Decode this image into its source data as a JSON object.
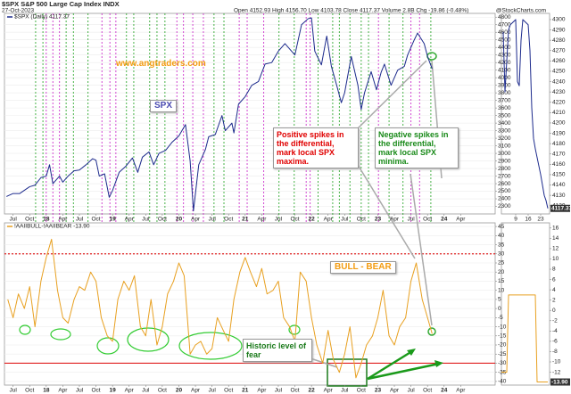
{
  "header": {
    "symbol": "$SPX S&P 500 Large Cap Index INDX",
    "date": "27-Oct-2023",
    "quote": "Open 4152.93 High 4156.70 Low 4103.78 Close 4117.37 Volume 2.8B Chg -19.86 (-0.48%)",
    "credit": "@StockCharts.com"
  },
  "annotations": {
    "site": "www.angtraders.com",
    "spx": "SPX",
    "positive": "Positive spikes in the differential, mark local SPX maxima.",
    "negative": "Negative spikes in the differential, mark local SPX minima.",
    "bull_bear": "BULL - BEAR",
    "fear": "Historic level of fear"
  },
  "chart_data": [
    {
      "type": "line",
      "legend": "$SPX (Daily) 4117.37",
      "color": "#1c2a8c",
      "grid": true,
      "xlim": [
        2017.37,
        2024.77
      ],
      "ylim": [
        2200,
        4850
      ],
      "yticks": [
        2300,
        2400,
        2500,
        2600,
        2700,
        2800,
        2900,
        3000,
        3100,
        3200,
        3300,
        3400,
        3500,
        3600,
        3700,
        3800,
        3900,
        4000,
        4100,
        4200,
        4300,
        4400,
        4500,
        4600,
        4700,
        4800
      ],
      "xticks": [
        {
          "value": 2017.5,
          "label": "Jul"
        },
        {
          "value": 2017.75,
          "label": "Oct"
        },
        {
          "value": 2018,
          "label": "18"
        },
        {
          "value": 2018.25,
          "label": "Apr"
        },
        {
          "value": 2018.5,
          "label": "Jul"
        },
        {
          "value": 2018.75,
          "label": "Oct"
        },
        {
          "value": 2019,
          "label": "19"
        },
        {
          "value": 2019.25,
          "label": "Apr"
        },
        {
          "value": 2019.5,
          "label": "Jul"
        },
        {
          "value": 2019.75,
          "label": "Oct"
        },
        {
          "value": 2020,
          "label": "20"
        },
        {
          "value": 2020.25,
          "label": "Apr"
        },
        {
          "value": 2020.5,
          "label": "Jul"
        },
        {
          "value": 2020.75,
          "label": "Oct"
        },
        {
          "value": 2021,
          "label": "21"
        },
        {
          "value": 2021.25,
          "label": "Apr"
        },
        {
          "value": 2021.5,
          "label": "Jul"
        },
        {
          "value": 2021.75,
          "label": "Oct"
        },
        {
          "value": 2022,
          "label": "22"
        },
        {
          "value": 2022.25,
          "label": "Apr"
        },
        {
          "value": 2022.5,
          "label": "Jul"
        },
        {
          "value": 2022.75,
          "label": "Oct"
        },
        {
          "value": 2023,
          "label": "23"
        },
        {
          "value": 2023.25,
          "label": "Apr"
        },
        {
          "value": 2023.5,
          "label": "Jul"
        },
        {
          "value": 2023.75,
          "label": "Oct"
        },
        {
          "value": 2024,
          "label": "24"
        },
        {
          "value": 2024.25,
          "label": "Apr"
        }
      ],
      "maxima_color": "#cc33cc",
      "minima_color": "#33aa33",
      "maxima_markers": [
        2018.0,
        2018.1,
        2018.2,
        2018.84,
        2018.96,
        2019.05,
        2019.97,
        2020.07,
        2020.21,
        2020.37,
        2020.91,
        2021.03,
        2021.28,
        2021.92,
        2021.98,
        2023.01,
        2023.5,
        2023.63
      ],
      "minima_markers": [
        2017.84,
        2017.95,
        2018.3,
        2018.41,
        2018.63,
        2019.21,
        2019.32,
        2019.56,
        2019.67,
        2019.79,
        2020.53,
        2020.68,
        2021.51,
        2021.74,
        2022.1,
        2022.32,
        2022.42,
        2022.58,
        2022.75,
        2022.86,
        2023.17,
        2023.38,
        2023.8
      ],
      "x": [
        2017.4,
        2017.5,
        2017.6,
        2017.75,
        2017.83,
        2017.92,
        2018.0,
        2018.05,
        2018.1,
        2018.2,
        2018.25,
        2018.33,
        2018.42,
        2018.5,
        2018.6,
        2018.7,
        2018.75,
        2018.8,
        2018.88,
        2018.95,
        2019.0,
        2019.1,
        2019.2,
        2019.3,
        2019.38,
        2019.45,
        2019.55,
        2019.62,
        2019.7,
        2019.8,
        2019.9,
        2020.0,
        2020.1,
        2020.17,
        2020.22,
        2020.3,
        2020.4,
        2020.45,
        2020.55,
        2020.65,
        2020.7,
        2020.8,
        2020.83,
        2020.9,
        2021.0,
        2021.1,
        2021.2,
        2021.3,
        2021.4,
        2021.5,
        2021.6,
        2021.7,
        2021.75,
        2021.85,
        2021.95,
        2022.0,
        2022.05,
        2022.15,
        2022.23,
        2022.3,
        2022.38,
        2022.45,
        2022.5,
        2022.6,
        2022.7,
        2022.75,
        2022.8,
        2022.9,
        2022.98,
        2023.05,
        2023.1,
        2023.2,
        2023.3,
        2023.4,
        2023.45,
        2023.55,
        2023.6,
        2023.7,
        2023.75,
        2023.82
      ],
      "values": [
        2430,
        2470,
        2470,
        2560,
        2580,
        2680,
        2700,
        2850,
        2600,
        2700,
        2620,
        2700,
        2770,
        2780,
        2850,
        2930,
        2910,
        2700,
        2730,
        2420,
        2510,
        2750,
        2830,
        2940,
        2750,
        2950,
        3020,
        2850,
        3000,
        3040,
        3150,
        3230,
        3380,
        2900,
        2240,
        2850,
        3050,
        3220,
        3250,
        3500,
        3300,
        3400,
        3270,
        3650,
        3750,
        3900,
        3950,
        4180,
        4200,
        4350,
        4450,
        4350,
        4300,
        4700,
        4780,
        4790,
        4350,
        4170,
        4550,
        4150,
        3900,
        3670,
        3800,
        4280,
        3900,
        3580,
        3800,
        4080,
        3840,
        4070,
        4180,
        3900,
        4100,
        4150,
        4300,
        4500,
        4590,
        4450,
        4280,
        4117.37
      ]
    },
    {
      "type": "line",
      "legend": "!AAIIBULL-!AAIIBEAR -13.90",
      "color": "#e8a020",
      "grid": true,
      "xlim": [
        2017.37,
        2024.77
      ],
      "ylim": [
        -42,
        47
      ],
      "yticks": [
        45,
        40,
        35,
        30,
        25,
        20,
        15,
        10,
        5,
        0,
        -5,
        -10,
        -15,
        -20,
        -25,
        -30,
        -35,
        -40
      ],
      "xticks": [
        {
          "value": 2017.5,
          "label": "Jul"
        },
        {
          "value": 2017.75,
          "label": "Oct"
        },
        {
          "value": 2018,
          "label": "18"
        },
        {
          "value": 2018.25,
          "label": "Apr"
        },
        {
          "value": 2018.5,
          "label": "Jul"
        },
        {
          "value": 2018.75,
          "label": "Oct"
        },
        {
          "value": 2019,
          "label": "19"
        },
        {
          "value": 2019.25,
          "label": "Apr"
        },
        {
          "value": 2019.5,
          "label": "Jul"
        },
        {
          "value": 2019.75,
          "label": "Oct"
        },
        {
          "value": 2020,
          "label": "20"
        },
        {
          "value": 2020.25,
          "label": "Apr"
        },
        {
          "value": 2020.5,
          "label": "Jul"
        },
        {
          "value": 2020.75,
          "label": "Oct"
        },
        {
          "value": 2021,
          "label": "21"
        },
        {
          "value": 2021.25,
          "label": "Apr"
        },
        {
          "value": 2021.5,
          "label": "Jul"
        },
        {
          "value": 2021.75,
          "label": "Oct"
        },
        {
          "value": 2022,
          "label": "22"
        },
        {
          "value": 2022.25,
          "label": "Apr"
        },
        {
          "value": 2022.5,
          "label": "Jul"
        },
        {
          "value": 2022.75,
          "label": "Oct"
        },
        {
          "value": 2023,
          "label": "23"
        },
        {
          "value": 2023.25,
          "label": "Apr"
        },
        {
          "value": 2023.5,
          "label": "Jul"
        },
        {
          "value": 2023.75,
          "label": "Oct"
        },
        {
          "value": 2024,
          "label": "24"
        },
        {
          "value": 2024.25,
          "label": "Apr"
        }
      ],
      "reference_lines": [
        {
          "value": 30,
          "color": "#e02020",
          "dashed": true
        },
        {
          "value": -30,
          "color": "#e02020",
          "dashed": false
        }
      ],
      "x": [
        2017.42,
        2017.5,
        2017.58,
        2017.67,
        2017.75,
        2017.83,
        2017.92,
        2018.0,
        2018.08,
        2018.17,
        2018.25,
        2018.33,
        2018.42,
        2018.5,
        2018.58,
        2018.67,
        2018.75,
        2018.83,
        2018.92,
        2019.0,
        2019.08,
        2019.17,
        2019.25,
        2019.33,
        2019.42,
        2019.5,
        2019.58,
        2019.67,
        2019.75,
        2019.83,
        2019.92,
        2020.0,
        2020.08,
        2020.17,
        2020.25,
        2020.33,
        2020.42,
        2020.5,
        2020.58,
        2020.67,
        2020.75,
        2020.83,
        2020.92,
        2021.0,
        2021.08,
        2021.17,
        2021.25,
        2021.33,
        2021.42,
        2021.5,
        2021.58,
        2021.67,
        2021.75,
        2021.83,
        2021.92,
        2022.0,
        2022.08,
        2022.17,
        2022.25,
        2022.33,
        2022.42,
        2022.5,
        2022.58,
        2022.67,
        2022.75,
        2022.83,
        2022.92,
        2023.0,
        2023.08,
        2023.17,
        2023.25,
        2023.33,
        2023.42,
        2023.5,
        2023.58,
        2023.67,
        2023.75,
        2023.82
      ],
      "values": [
        5,
        -5,
        8,
        0,
        12,
        -10,
        15,
        28,
        38,
        10,
        -5,
        -8,
        5,
        12,
        10,
        20,
        15,
        -5,
        -15,
        -18,
        5,
        15,
        10,
        18,
        -10,
        -15,
        5,
        -20,
        -10,
        8,
        15,
        25,
        18,
        -25,
        -20,
        -18,
        -25,
        -22,
        -5,
        -12,
        -18,
        5,
        20,
        28,
        20,
        12,
        22,
        8,
        10,
        15,
        -5,
        -10,
        -18,
        20,
        15,
        -5,
        -20,
        -30,
        -12,
        -28,
        -35,
        -25,
        -10,
        -38,
        -30,
        -20,
        -15,
        -5,
        10,
        -15,
        -20,
        -10,
        -5,
        15,
        25,
        5,
        -5,
        -13.9
      ]
    },
    {
      "type": "line",
      "color": "#1c2a8c",
      "grid": false,
      "xlim": [
        1,
        28
      ],
      "ylim": [
        4112,
        4306
      ],
      "yticks": [
        4300,
        4290,
        4280,
        4270,
        4260,
        4250,
        4240,
        4230,
        4220,
        4210,
        4200,
        4190,
        4180,
        4170,
        4160,
        4150,
        4140,
        4130,
        4120
      ],
      "xticks": [
        9,
        16,
        23
      ],
      "last_label": "4117.37",
      "x": [
        2,
        3,
        4,
        5,
        6,
        9,
        10,
        11,
        12,
        13,
        16,
        17,
        18,
        19,
        20,
        23,
        24,
        25,
        26,
        27
      ],
      "values": [
        4288,
        4230,
        4260,
        4290,
        4295,
        4300,
        4240,
        4236,
        4280,
        4300,
        4295,
        4270,
        4215,
        4185,
        4175,
        4150,
        4140,
        4130,
        4125,
        4117.37
      ]
    },
    {
      "type": "line",
      "color": "#e8a020",
      "grid": false,
      "xlim": [
        1,
        28
      ],
      "ylim": [
        -14.5,
        17
      ],
      "yticks": [
        16,
        14,
        12,
        10,
        8,
        6,
        4,
        2,
        0,
        -2,
        -4,
        -6,
        -8,
        -10,
        -12
      ],
      "last_label": "-13.90",
      "x": [
        1,
        4,
        5,
        20,
        21,
        27
      ],
      "values": [
        -12,
        -12,
        3,
        3,
        -13.9,
        -13.9
      ]
    }
  ]
}
